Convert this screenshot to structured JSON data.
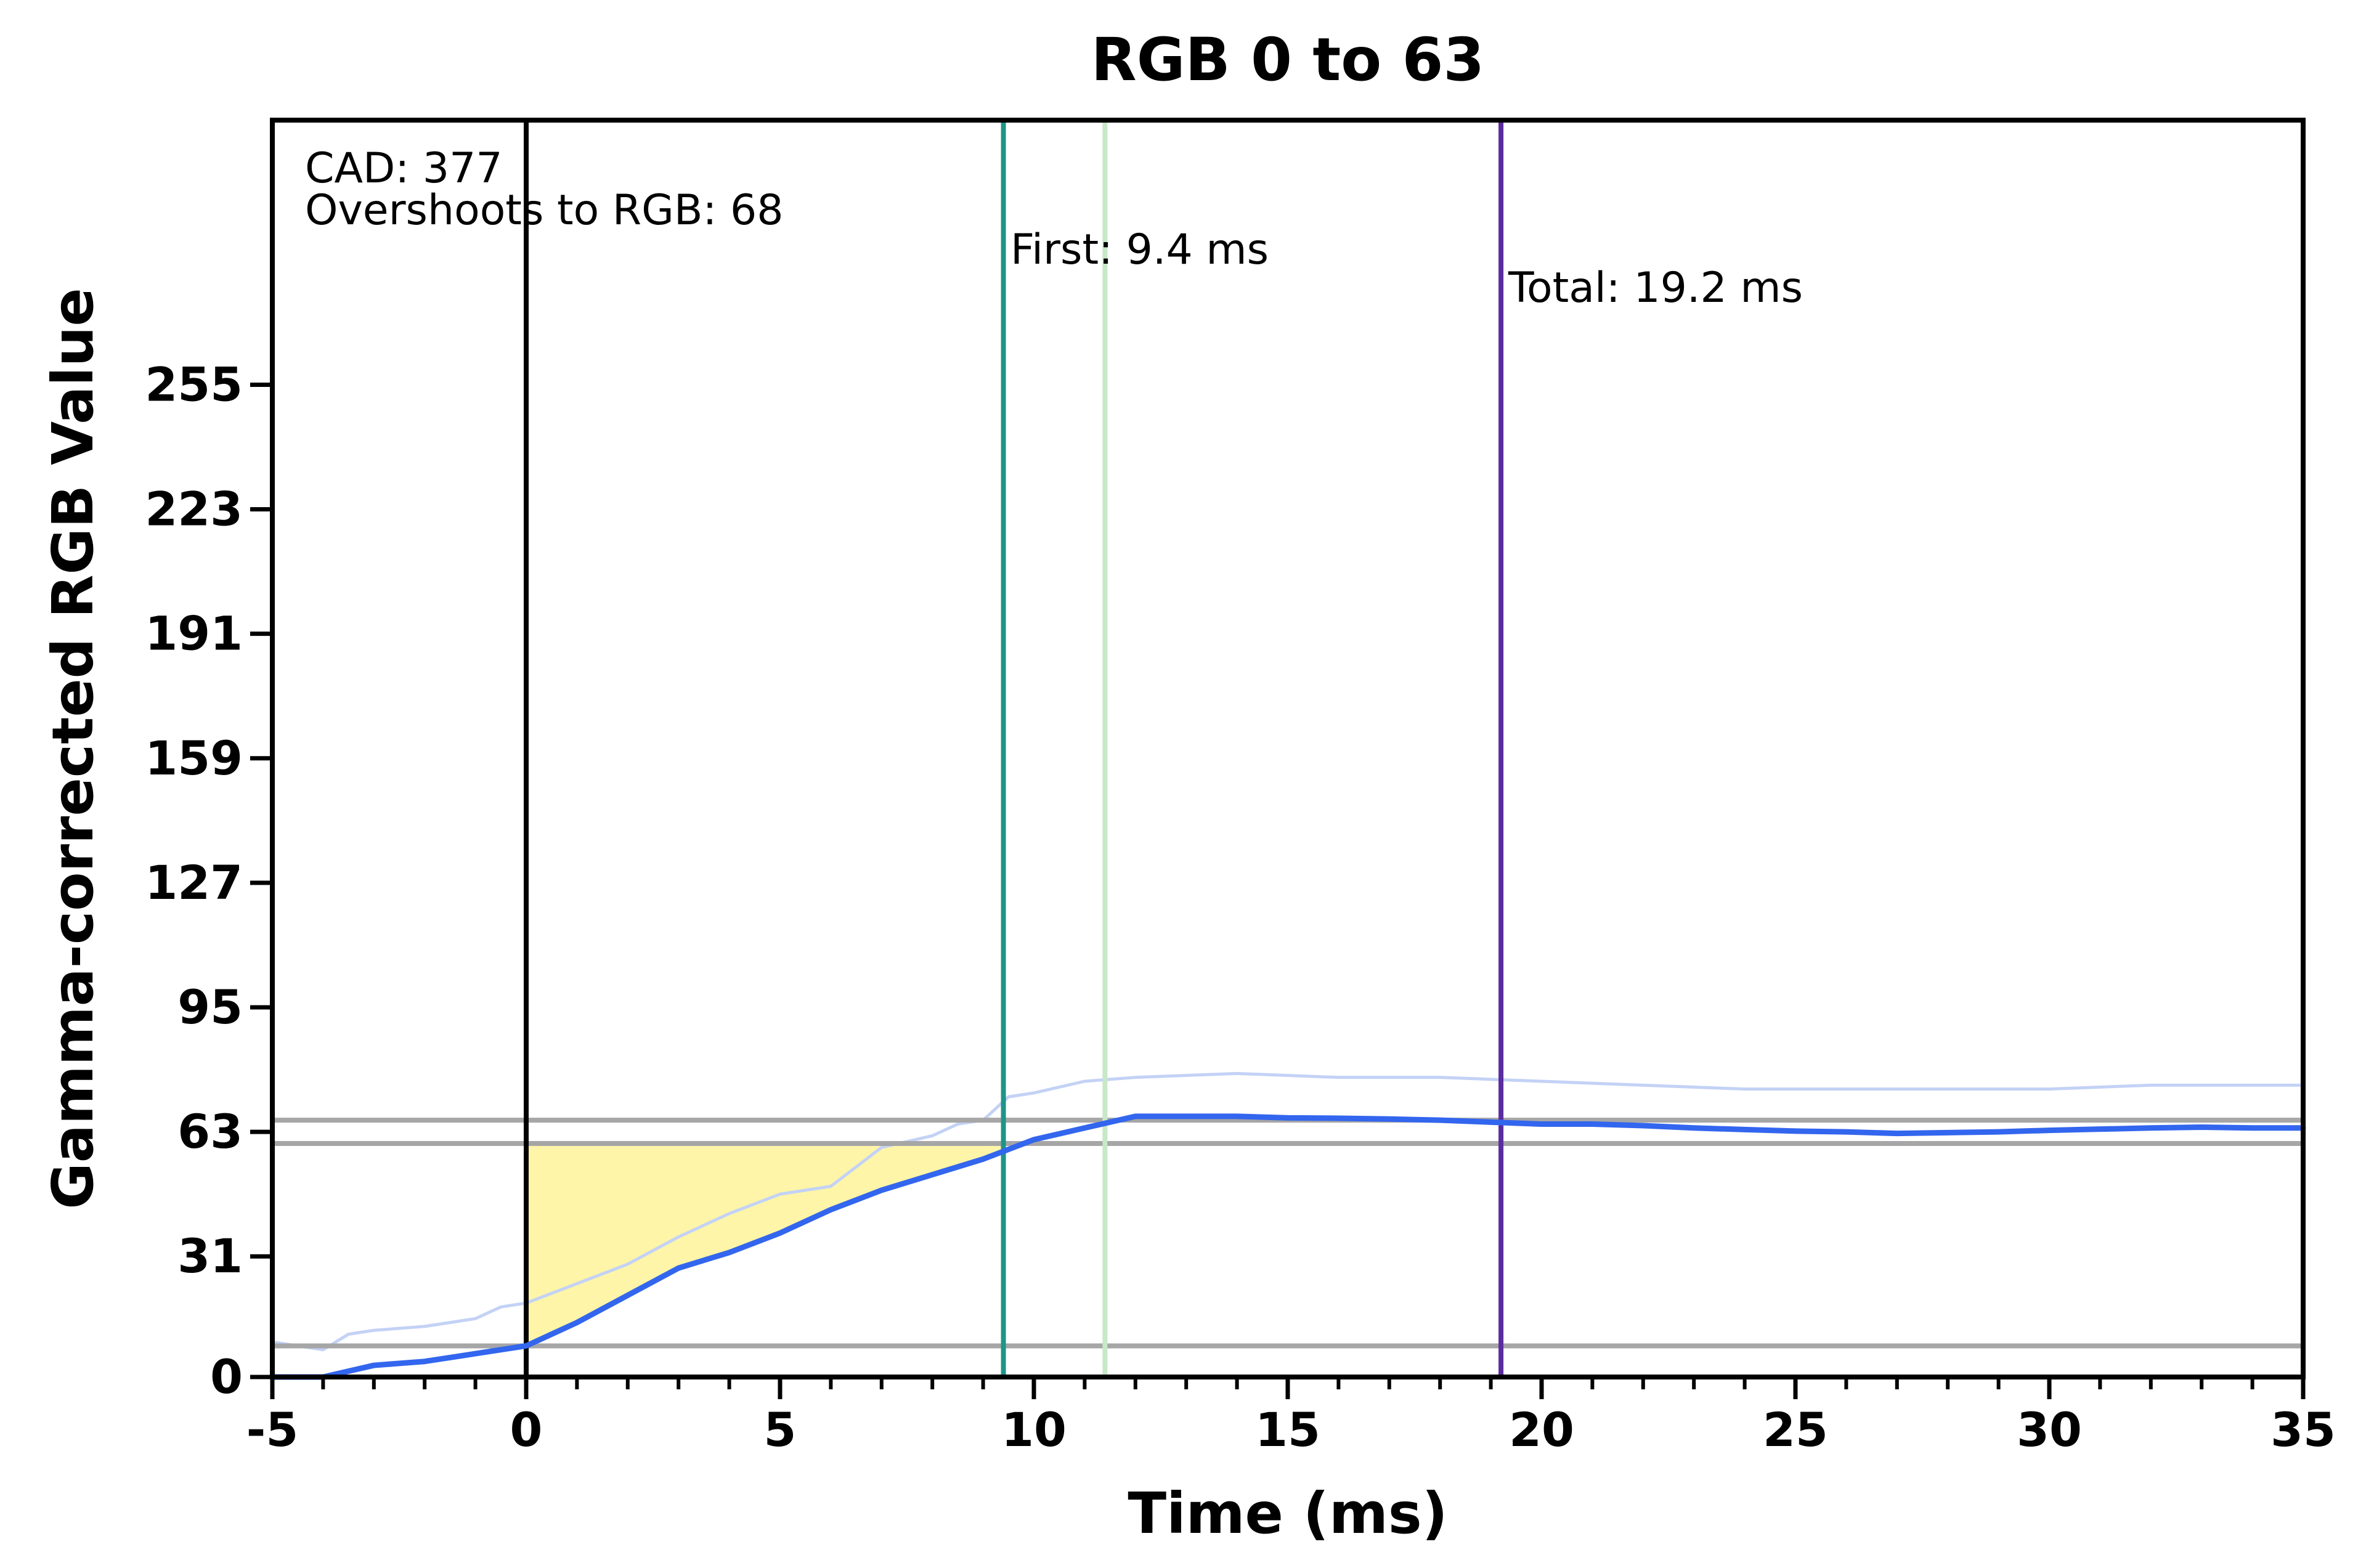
{
  "chart_data": {
    "type": "line",
    "title": "RGB 0 to 63",
    "xlabel": "Time (ms)",
    "ylabel": "Gamma-corrected RGB Value",
    "xlim": [
      -5,
      35
    ],
    "ylim": [
      0,
      323
    ],
    "xticks": [
      -5,
      0,
      5,
      10,
      15,
      20,
      25,
      30,
      35
    ],
    "yticks": [
      0,
      31,
      63,
      95,
      127,
      159,
      191,
      223,
      255
    ],
    "grid": false,
    "series": [
      {
        "role": "smoothed",
        "color": "#3366ee",
        "x": [
          -5,
          -4,
          -3,
          -2,
          -1,
          0,
          1,
          2,
          3,
          4,
          5,
          6,
          7,
          8,
          9,
          9.4,
          10,
          11,
          12,
          13,
          14,
          15,
          16,
          17,
          18,
          19,
          20,
          21,
          22,
          23,
          24,
          25,
          26,
          27,
          28,
          29,
          30,
          31,
          32,
          33,
          34,
          35
        ],
        "y": [
          0,
          0,
          3,
          4,
          6,
          8,
          14,
          21,
          28,
          32,
          37,
          43,
          48,
          52,
          56,
          58,
          61,
          64,
          67,
          67,
          67,
          66.6,
          66.5,
          66.3,
          66,
          65.5,
          65,
          65,
          64.6,
          64,
          63.6,
          63.2,
          63,
          62.6,
          62.8,
          63,
          63.4,
          63.7,
          64,
          64.2,
          64,
          64
        ]
      },
      {
        "role": "raw",
        "color": "#c3d2f5",
        "x": [
          -5,
          -4.5,
          -4,
          -3.5,
          -3,
          -2,
          -1,
          -0.5,
          0,
          1,
          2,
          3,
          4,
          5,
          6,
          7,
          8,
          8.5,
          9,
          9.5,
          10,
          11,
          12,
          14,
          16,
          18,
          20,
          22,
          24,
          26,
          28,
          30,
          32,
          34,
          35
        ],
        "y": [
          9,
          8,
          7,
          11,
          12,
          13,
          15,
          18,
          19,
          24,
          29,
          36,
          42,
          47,
          49,
          59,
          62,
          65,
          66,
          72,
          73,
          76,
          77,
          78,
          77,
          77,
          76,
          75,
          74,
          74,
          74,
          74,
          75,
          75,
          75
        ]
      }
    ],
    "reference_lines": {
      "horizontal": [
        {
          "y": 8,
          "color": "#a6a6a6"
        },
        {
          "y": 60,
          "color": "#a6a6a6"
        },
        {
          "y": 66,
          "color": "#a6a6a6"
        }
      ],
      "vertical": [
        {
          "x": 0,
          "color": "#000000"
        },
        {
          "x": 9.4,
          "color": "#1f9488"
        },
        {
          "x": 11.4,
          "color": "#c8e8c8"
        },
        {
          "x": 19.2,
          "color": "#5a2ca0"
        }
      ]
    },
    "shaded_region": {
      "color": "#fff5a8",
      "x_start": 0,
      "x_end": 9.4,
      "y_top": 60
    },
    "annotations": {
      "cad": "CAD: 377",
      "overshoot": "Overshoots to RGB: 68",
      "first": "First: 9.4 ms",
      "total": "Total: 19.2 ms"
    }
  }
}
